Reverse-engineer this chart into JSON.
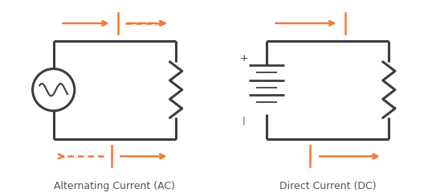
{
  "bg_color": "#ffffff",
  "circuit_color": "#3d3d3d",
  "arrow_color": "#f47735",
  "line_width": 2.2,
  "arrow_lw": 1.8,
  "ac_label": "Alternating Current (AC)",
  "dc_label": "Direct Current (DC)",
  "label_fontsize": 9,
  "label_color": "#555555"
}
